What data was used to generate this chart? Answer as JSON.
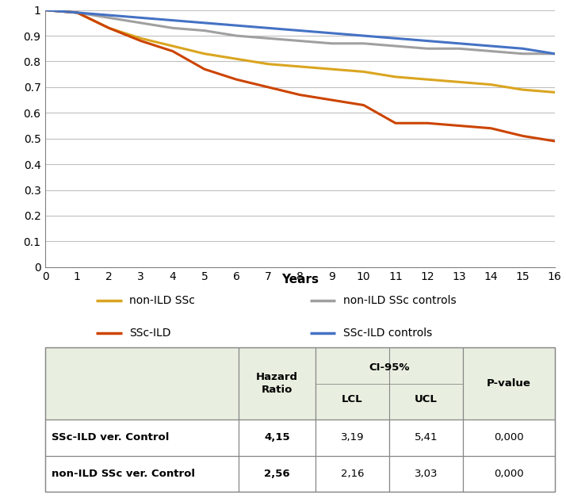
{
  "non_ild_ssc_x": [
    0,
    1,
    2,
    3,
    4,
    5,
    6,
    7,
    8,
    9,
    10,
    11,
    12,
    13,
    14,
    15,
    16
  ],
  "non_ild_ssc_y": [
    1.0,
    0.99,
    0.93,
    0.89,
    0.86,
    0.83,
    0.81,
    0.79,
    0.78,
    0.77,
    0.76,
    0.74,
    0.73,
    0.72,
    0.71,
    0.69,
    0.68
  ],
  "non_ild_ssc_controls_x": [
    0,
    1,
    2,
    3,
    4,
    5,
    6,
    7,
    8,
    9,
    10,
    11,
    12,
    13,
    14,
    15,
    16
  ],
  "non_ild_ssc_controls_y": [
    1.0,
    0.99,
    0.97,
    0.95,
    0.93,
    0.92,
    0.9,
    0.89,
    0.88,
    0.87,
    0.87,
    0.86,
    0.85,
    0.85,
    0.84,
    0.83,
    0.83
  ],
  "ssc_ild_x": [
    0,
    1,
    2,
    3,
    4,
    5,
    6,
    7,
    8,
    9,
    10,
    11,
    12,
    13,
    14,
    15,
    16
  ],
  "ssc_ild_y": [
    1.0,
    0.99,
    0.93,
    0.88,
    0.84,
    0.77,
    0.73,
    0.7,
    0.67,
    0.65,
    0.63,
    0.56,
    0.56,
    0.55,
    0.54,
    0.51,
    0.49
  ],
  "ssc_ild_controls_x": [
    0,
    1,
    2,
    3,
    4,
    5,
    6,
    7,
    8,
    9,
    10,
    11,
    12,
    13,
    14,
    15,
    16
  ],
  "ssc_ild_controls_y": [
    1.0,
    0.99,
    0.98,
    0.97,
    0.96,
    0.95,
    0.94,
    0.93,
    0.92,
    0.91,
    0.9,
    0.89,
    0.88,
    0.87,
    0.86,
    0.85,
    0.83
  ],
  "non_ild_ssc_color": "#DAA520",
  "non_ild_ssc_controls_color": "#A0A0A0",
  "ssc_ild_color": "#CC4400",
  "ssc_ild_controls_color": "#4472C4",
  "xlabel": "Years",
  "ylim": [
    0,
    1.0
  ],
  "xlim": [
    0,
    16
  ],
  "yticks": [
    0,
    0.1,
    0.2,
    0.3,
    0.4,
    0.5,
    0.6,
    0.7,
    0.8,
    0.9,
    1
  ],
  "ytick_labels": [
    "0",
    "0.1",
    "0.2",
    "0.3",
    "0.4",
    "0.5",
    "0.6",
    "0.7",
    "0.8",
    "0.9",
    "1"
  ],
  "xticks": [
    0,
    1,
    2,
    3,
    4,
    5,
    6,
    7,
    8,
    9,
    10,
    11,
    12,
    13,
    14,
    15,
    16
  ],
  "table_row1_label": "SSc-ILD ver. Control",
  "table_row2_label": "non-ILD SSc ver. Control",
  "table_row1_hr": "4,15",
  "table_row1_lcl": "3,19",
  "table_row1_ucl": "5,41",
  "table_row1_pval": "0,000",
  "table_row2_hr": "2,56",
  "table_row2_lcl": "2,16",
  "table_row2_ucl": "3,03",
  "table_row2_pval": "0,000",
  "table_bg": "#E8EFE0",
  "table_white": "#FFFFFF",
  "line_width": 2.2,
  "legend_entries": [
    {
      "color": "#DAA520",
      "label": "non-ILD SSc",
      "col": 0
    },
    {
      "color": "#A0A0A0",
      "label": "non-ILD SSc controls",
      "col": 1
    },
    {
      "color": "#CC4400",
      "label": "SSc-ILD",
      "col": 0
    },
    {
      "color": "#4472C4",
      "label": "SSc-ILD controls",
      "col": 1
    }
  ]
}
